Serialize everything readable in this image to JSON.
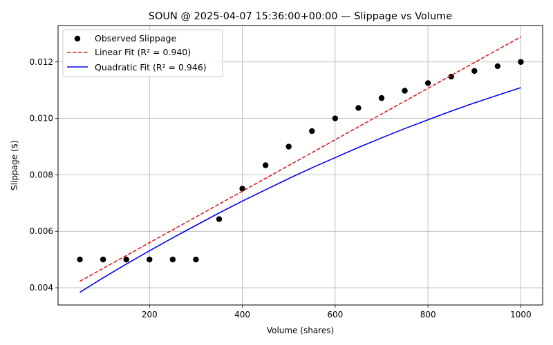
{
  "chart_data": {
    "type": "scatter",
    "title": "SOUN @ 2025-04-07 15:36:00+00:00 — Slippage vs Volume",
    "xlabel": "Volume (shares)",
    "ylabel": "Slippage ($)",
    "xlim": [
      3,
      1047
    ],
    "ylim": [
      0.00339,
      0.01329
    ],
    "xticks": [
      200,
      400,
      600,
      800,
      1000
    ],
    "xtick_labels": [
      "200",
      "400",
      "600",
      "800",
      "1000"
    ],
    "yticks": [
      0.004,
      0.006,
      0.008,
      0.01,
      0.012
    ],
    "ytick_labels": [
      "0.004",
      "0.006",
      "0.008",
      "0.010",
      "0.012"
    ],
    "grid": true,
    "legend_position": "top-left",
    "series": [
      {
        "name": "Observed Slippage",
        "kind": "scatter",
        "color": "#000000",
        "x": [
          50,
          100,
          150,
          200,
          250,
          300,
          350,
          400,
          450,
          500,
          550,
          600,
          650,
          700,
          750,
          800,
          850,
          900,
          950,
          1000
        ],
        "y": [
          0.005,
          0.005,
          0.005,
          0.005,
          0.005,
          0.005,
          0.00643,
          0.00751,
          0.00834,
          0.009,
          0.00955,
          0.01,
          0.01037,
          0.01072,
          0.01098,
          0.01125,
          0.01148,
          0.01168,
          0.01185,
          0.012
        ]
      },
      {
        "name": "Linear Fit (R² = 0.940)",
        "kind": "line",
        "dashed": true,
        "color": "#e31a1c",
        "x": [
          50,
          1000
        ],
        "y": [
          0.00423,
          0.01289
        ]
      },
      {
        "name": "Quadratic Fit (R² = 0.946)",
        "kind": "line",
        "dashed": false,
        "color": "#0000ff",
        "x": [
          50,
          100,
          150,
          200,
          250,
          300,
          350,
          400,
          450,
          500,
          550,
          600,
          650,
          700,
          750,
          800,
          850,
          900,
          950,
          1000
        ],
        "y": [
          0.00384,
          0.00435,
          0.00484,
          0.00531,
          0.00577,
          0.00621,
          0.00665,
          0.00707,
          0.00747,
          0.00787,
          0.00825,
          0.00861,
          0.00897,
          0.00931,
          0.00964,
          0.00995,
          0.01026,
          0.01055,
          0.01082,
          0.01109
        ]
      }
    ]
  }
}
